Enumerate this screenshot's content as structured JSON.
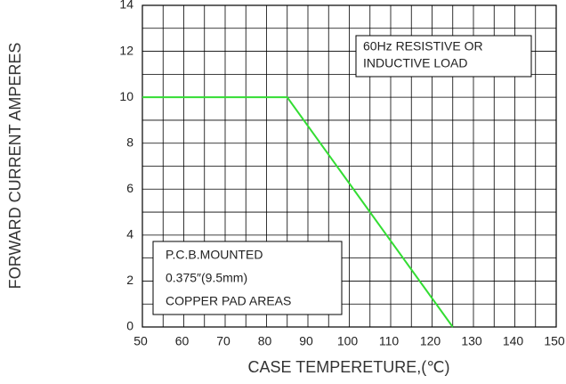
{
  "chart_data": {
    "type": "line",
    "x_label": "CASE TEMPERETURE,(℃)",
    "y_label": "FORWARD CURRENT AMPERES",
    "x": [
      50,
      85,
      125
    ],
    "series": [
      {
        "name": "Forward current",
        "color": "#33dd33",
        "values": [
          10,
          10,
          0
        ]
      }
    ],
    "xlim": [
      50,
      150
    ],
    "xticks": [
      50,
      60,
      70,
      80,
      90,
      100,
      110,
      120,
      130,
      140,
      150
    ],
    "x_minor_ticks": [
      55,
      65,
      75,
      85,
      95,
      105,
      115,
      125,
      135,
      145
    ],
    "ylim": [
      0,
      14
    ],
    "yticks": [
      0,
      2,
      4,
      6,
      8,
      10,
      12,
      14
    ],
    "y_minor_ticks": [
      1,
      3,
      5,
      7,
      9,
      11,
      13
    ],
    "grid": true,
    "annotations": [
      [
        "60Hz RESISTIVE OR",
        "INDUCTIVE LOAD"
      ],
      [
        "P.C.B.MOUNTED",
        "0.375″(9.5mm)",
        "COPPER PAD AREAS"
      ]
    ]
  }
}
